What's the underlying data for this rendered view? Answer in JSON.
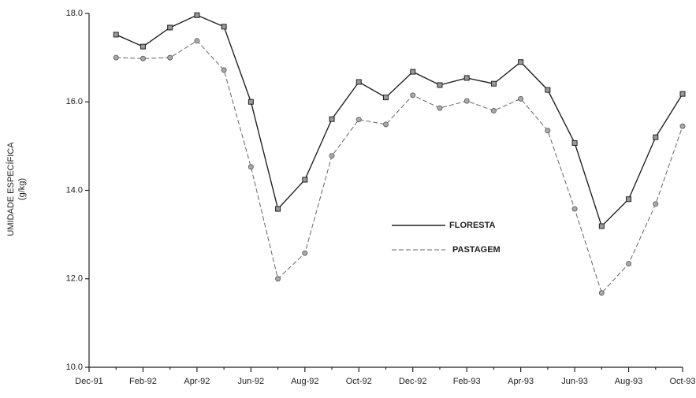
{
  "chart_data": {
    "type": "line",
    "y_label_lines": [
      "UMIDADE ESPECÍFICA",
      "(g/kg)"
    ],
    "categories": [
      "Dec-91",
      null,
      "Feb-92",
      null,
      "Apr-92",
      null,
      "Jun-92",
      null,
      "Aug-92",
      null,
      "Oct-92",
      null,
      "Dec-92",
      null,
      "Feb-93",
      null,
      "Apr-93",
      null,
      "Jun-93",
      null,
      "Aug-93",
      null,
      "Oct-93"
    ],
    "series": [
      {
        "name": "FLORESTA",
        "color": "#222222",
        "dashed": false,
        "marker": "square",
        "values": [
          null,
          17.52,
          17.25,
          17.68,
          17.96,
          17.7,
          16.0,
          13.58,
          14.24,
          15.61,
          16.45,
          16.1,
          16.68,
          16.38,
          16.54,
          16.41,
          16.9,
          16.27,
          15.07,
          13.19,
          13.8,
          15.2,
          16.18
        ]
      },
      {
        "name": "PASTAGEM",
        "color": "#666666",
        "dashed": true,
        "marker": "circle",
        "values": [
          null,
          17.0,
          16.98,
          17.0,
          17.38,
          16.72,
          14.53,
          12.0,
          12.58,
          14.78,
          15.6,
          15.49,
          16.15,
          15.86,
          16.02,
          15.8,
          16.07,
          15.35,
          13.58,
          11.68,
          12.34,
          13.69,
          15.45
        ]
      }
    ],
    "ylim": [
      10,
      18
    ],
    "yticks": [
      {
        "value": 10,
        "label": "10.0"
      },
      {
        "value": 12,
        "label": "12.0"
      },
      {
        "value": 14,
        "label": "14.0"
      },
      {
        "value": 16,
        "label": "16.0"
      },
      {
        "value": 18,
        "label": "18.0"
      }
    ]
  }
}
